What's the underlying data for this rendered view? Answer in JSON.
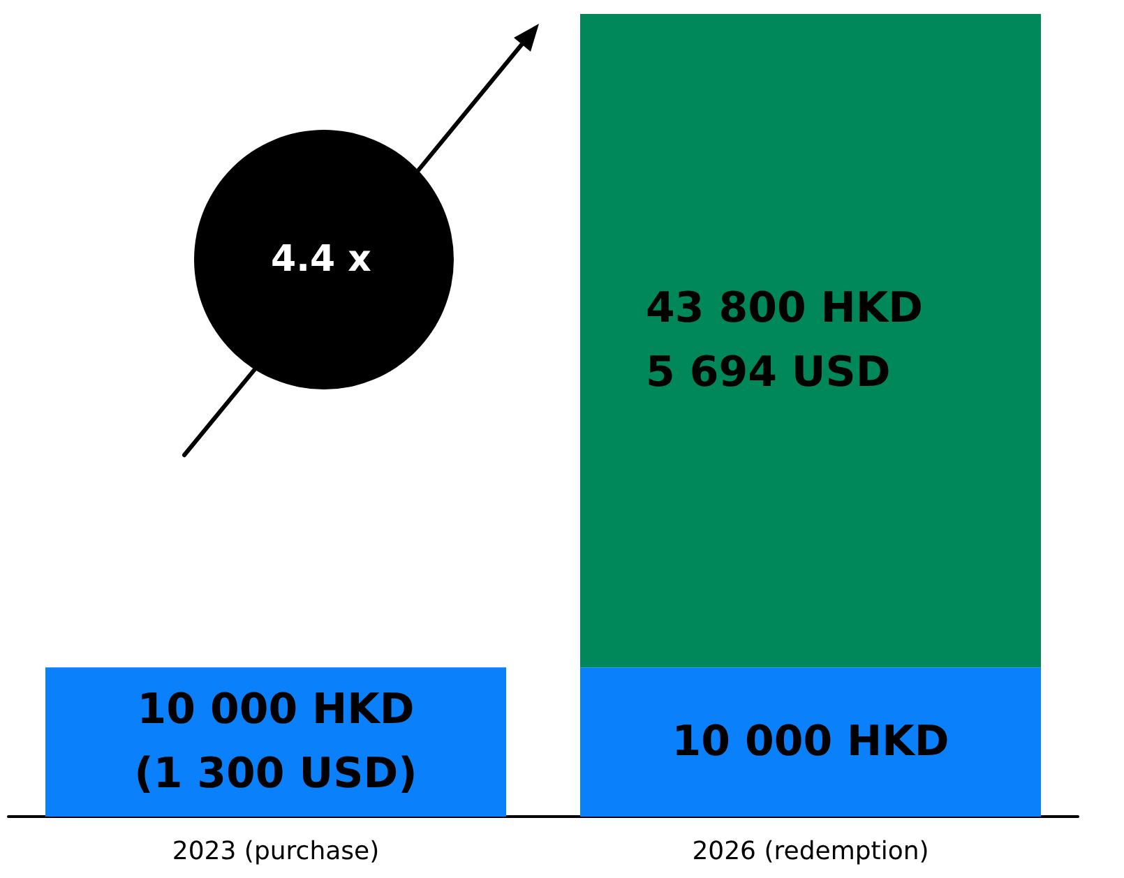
{
  "chart_data": {
    "type": "bar",
    "stacked": true,
    "categories": [
      "2023 (purchase)",
      "2026 (redemption)"
    ],
    "series": [
      {
        "color": "#0a80fa",
        "values": [
          10000,
          10000
        ],
        "value_labels": [
          "10 000 HKD\n(1 300 USD)",
          "10 000 HKD"
        ]
      },
      {
        "color": "#00875a",
        "values": [
          null,
          43800
        ],
        "value_labels": [
          null,
          "43 800 HKD\n5 694 USD"
        ]
      }
    ],
    "annotations": [
      "4.4 x"
    ],
    "grid": false
  }
}
